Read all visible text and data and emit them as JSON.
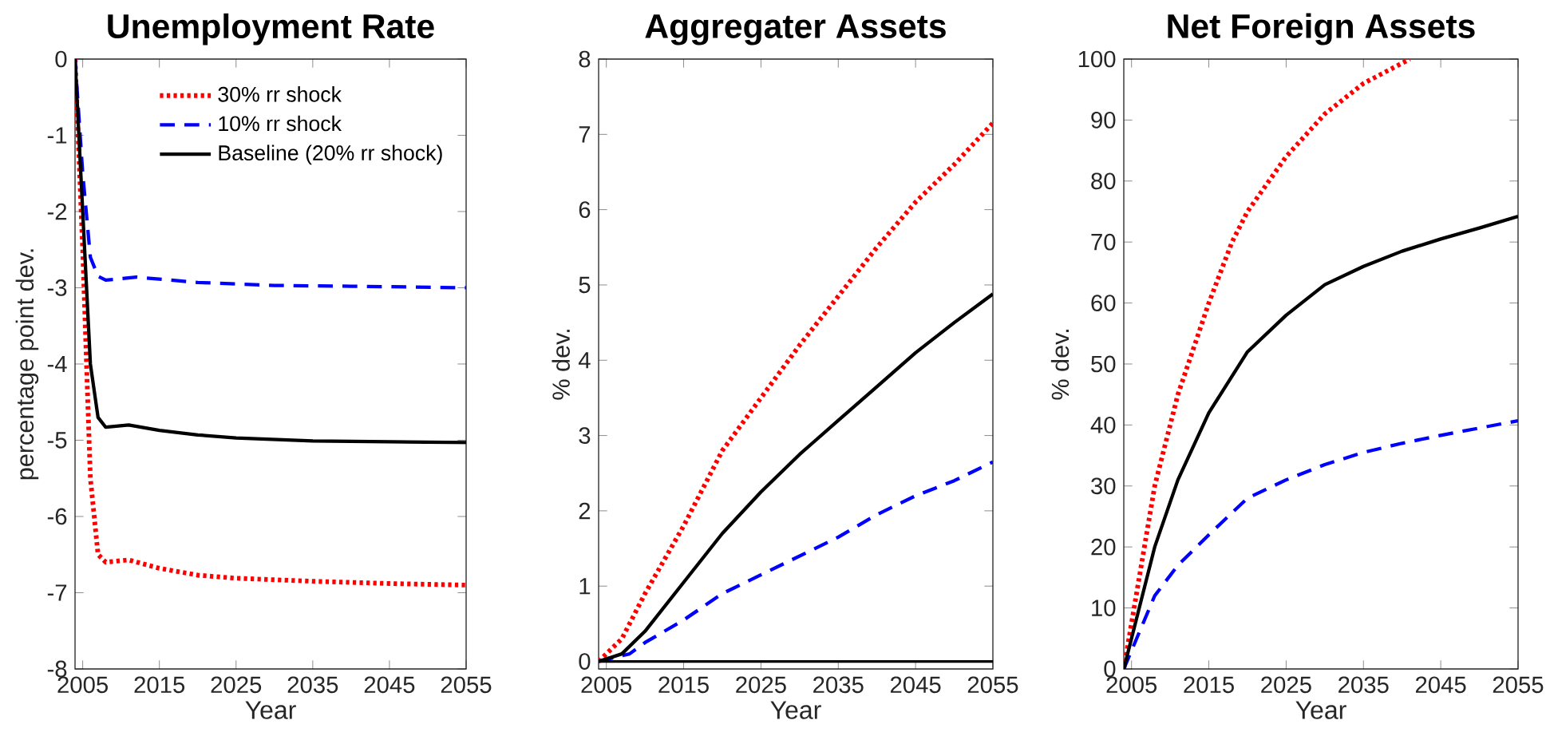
{
  "chart_data": [
    {
      "type": "line",
      "title": "Unemployment Rate",
      "xlabel": "Year",
      "ylabel": "percentage point dev.",
      "xlim": [
        2004,
        2055
      ],
      "xticks": [
        2005,
        2015,
        2025,
        2035,
        2045,
        2055
      ],
      "ylim": [
        -8,
        0
      ],
      "yticks": [
        -8,
        -7,
        -6,
        -5,
        -4,
        -3,
        -2,
        -1,
        0
      ],
      "grid": false,
      "legend": "top right",
      "series": [
        {
          "name": "30% rr shock",
          "color": "#ff0000",
          "line_style": "dotted",
          "x": [
            2004,
            2005,
            2006,
            2007,
            2008,
            2011,
            2015,
            2020,
            2025,
            2035,
            2045,
            2055
          ],
          "values": [
            0,
            -2.5,
            -5.5,
            -6.5,
            -6.6,
            -6.57,
            -6.68,
            -6.77,
            -6.81,
            -6.85,
            -6.88,
            -6.9
          ]
        },
        {
          "name": "10% rr shock",
          "color": "#0000ff",
          "line_style": "dashed",
          "x": [
            2004,
            2005,
            2006,
            2007,
            2008,
            2012,
            2020,
            2030,
            2040,
            2055
          ],
          "values": [
            0,
            -1.5,
            -2.6,
            -2.85,
            -2.9,
            -2.86,
            -2.93,
            -2.97,
            -2.98,
            -3.0
          ]
        },
        {
          "name": "Baseline (20% rr shock)",
          "color": "#000000",
          "line_style": "solid",
          "x": [
            2004,
            2005,
            2006,
            2007,
            2008,
            2011,
            2015,
            2020,
            2025,
            2035,
            2045,
            2055
          ],
          "values": [
            0,
            -2,
            -4,
            -4.7,
            -4.83,
            -4.8,
            -4.87,
            -4.93,
            -4.97,
            -5.01,
            -5.02,
            -5.03
          ]
        }
      ]
    },
    {
      "type": "line",
      "title": "Aggregater Assets",
      "xlabel": "Year",
      "ylabel": "% dev.",
      "xlim": [
        2004,
        2055
      ],
      "xticks": [
        2005,
        2015,
        2025,
        2035,
        2045,
        2055
      ],
      "ylim": [
        -0.1,
        8
      ],
      "yticks": [
        0,
        1,
        2,
        3,
        4,
        5,
        6,
        7,
        8
      ],
      "grid": false,
      "ref_lines": [
        {
          "axis": "y",
          "value": 0,
          "color": "#000000"
        }
      ],
      "series": [
        {
          "color": "#ff0000",
          "line_style": "dotted",
          "x": [
            2004,
            2007,
            2010,
            2015,
            2020,
            2025,
            2030,
            2035,
            2040,
            2045,
            2050,
            2055
          ],
          "values": [
            0,
            0.3,
            0.9,
            1.8,
            2.8,
            3.5,
            4.2,
            4.85,
            5.5,
            6.1,
            6.6,
            7.15
          ]
        },
        {
          "color": "#0000ff",
          "line_style": "dashed",
          "x": [
            2004,
            2008,
            2010,
            2015,
            2020,
            2025,
            2030,
            2035,
            2040,
            2045,
            2050,
            2055
          ],
          "values": [
            0,
            0.1,
            0.25,
            0.55,
            0.9,
            1.15,
            1.4,
            1.65,
            1.95,
            2.2,
            2.4,
            2.65
          ]
        },
        {
          "color": "#000000",
          "line_style": "solid",
          "x": [
            2004,
            2007,
            2010,
            2015,
            2020,
            2025,
            2030,
            2035,
            2040,
            2045,
            2050,
            2055
          ],
          "values": [
            0,
            0.1,
            0.4,
            1.05,
            1.7,
            2.25,
            2.75,
            3.2,
            3.65,
            4.1,
            4.5,
            4.88
          ]
        }
      ]
    },
    {
      "type": "line",
      "title": "Net Foreign Assets",
      "xlabel": "Year",
      "ylabel": "% dev.",
      "xlim": [
        2004,
        2055
      ],
      "xticks": [
        2005,
        2015,
        2025,
        2035,
        2045,
        2055
      ],
      "ylim": [
        0,
        100
      ],
      "yticks": [
        0,
        10,
        20,
        30,
        40,
        50,
        60,
        70,
        80,
        90,
        100
      ],
      "grid": false,
      "series": [
        {
          "color": "#ff0000",
          "line_style": "dotted",
          "x": [
            2004,
            2006,
            2008,
            2011,
            2015,
            2018,
            2020,
            2025,
            2030,
            2035,
            2041
          ],
          "values": [
            0,
            15,
            30,
            45,
            60,
            70,
            75,
            84,
            91,
            96,
            100
          ]
        },
        {
          "color": "#0000ff",
          "line_style": "dashed",
          "x": [
            2004,
            2006,
            2008,
            2011,
            2015,
            2020,
            2025,
            2030,
            2035,
            2040,
            2045,
            2050,
            2055
          ],
          "values": [
            0,
            6,
            12,
            17,
            22,
            28,
            31,
            33.5,
            35.5,
            37,
            38.3,
            39.5,
            40.7
          ]
        },
        {
          "color": "#000000",
          "line_style": "solid",
          "x": [
            2004,
            2006,
            2008,
            2011,
            2015,
            2020,
            2025,
            2030,
            2035,
            2040,
            2045,
            2050,
            2055
          ],
          "values": [
            0,
            10,
            20,
            31,
            42,
            52,
            58,
            63,
            66,
            68.5,
            70.5,
            72.3,
            74.2
          ]
        }
      ]
    }
  ]
}
